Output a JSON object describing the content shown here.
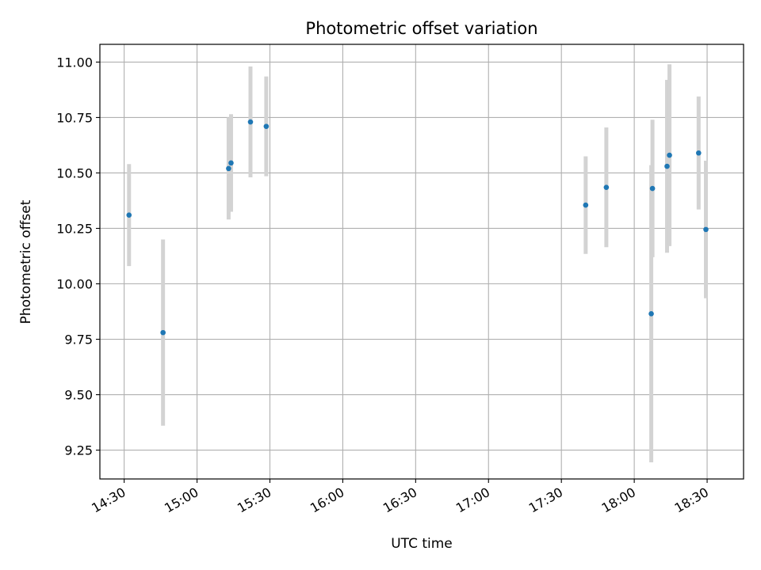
{
  "chart_data": {
    "type": "scatter",
    "title": "Photometric offset variation",
    "xlabel": "UTC time",
    "ylabel": "Photometric offset",
    "x_unit": "minutes since 00:00 UTC",
    "xlim": [
      860,
      1125
    ],
    "ylim": [
      9.12,
      11.08
    ],
    "xticks": [
      870,
      900,
      930,
      960,
      990,
      1020,
      1050,
      1080,
      1110
    ],
    "xtick_labels": [
      "14:30",
      "15:00",
      "15:30",
      "16:00",
      "16:30",
      "17:00",
      "17:30",
      "18:00",
      "18:30"
    ],
    "yticks": [
      9.25,
      9.5,
      9.75,
      10.0,
      10.25,
      10.5,
      10.75,
      11.0
    ],
    "ytick_labels": [
      "9.25",
      "9.50",
      "9.75",
      "10.00",
      "10.25",
      "10.50",
      "10.75",
      "11.00"
    ],
    "grid": true,
    "marker_color": "#1f77b4",
    "errorbar_color": "#d3d3d3",
    "points": [
      {
        "x": 872.0,
        "y": 10.31,
        "err": 0.23
      },
      {
        "x": 886.0,
        "y": 9.78,
        "err": 0.42
      },
      {
        "x": 913.0,
        "y": 10.52,
        "err": 0.23
      },
      {
        "x": 914.0,
        "y": 10.545,
        "err": 0.22
      },
      {
        "x": 922.0,
        "y": 10.73,
        "err": 0.25
      },
      {
        "x": 928.5,
        "y": 10.71,
        "err": 0.225
      },
      {
        "x": 1060.0,
        "y": 10.355,
        "err": 0.22
      },
      {
        "x": 1068.5,
        "y": 10.435,
        "err": 0.27
      },
      {
        "x": 1087.0,
        "y": 9.865,
        "err": 0.67
      },
      {
        "x": 1087.5,
        "y": 10.43,
        "err": 0.31
      },
      {
        "x": 1093.5,
        "y": 10.53,
        "err": 0.39
      },
      {
        "x": 1094.5,
        "y": 10.58,
        "err": 0.41
      },
      {
        "x": 1106.5,
        "y": 10.59,
        "err": 0.255
      },
      {
        "x": 1109.5,
        "y": 10.245,
        "err": 0.31
      }
    ]
  }
}
